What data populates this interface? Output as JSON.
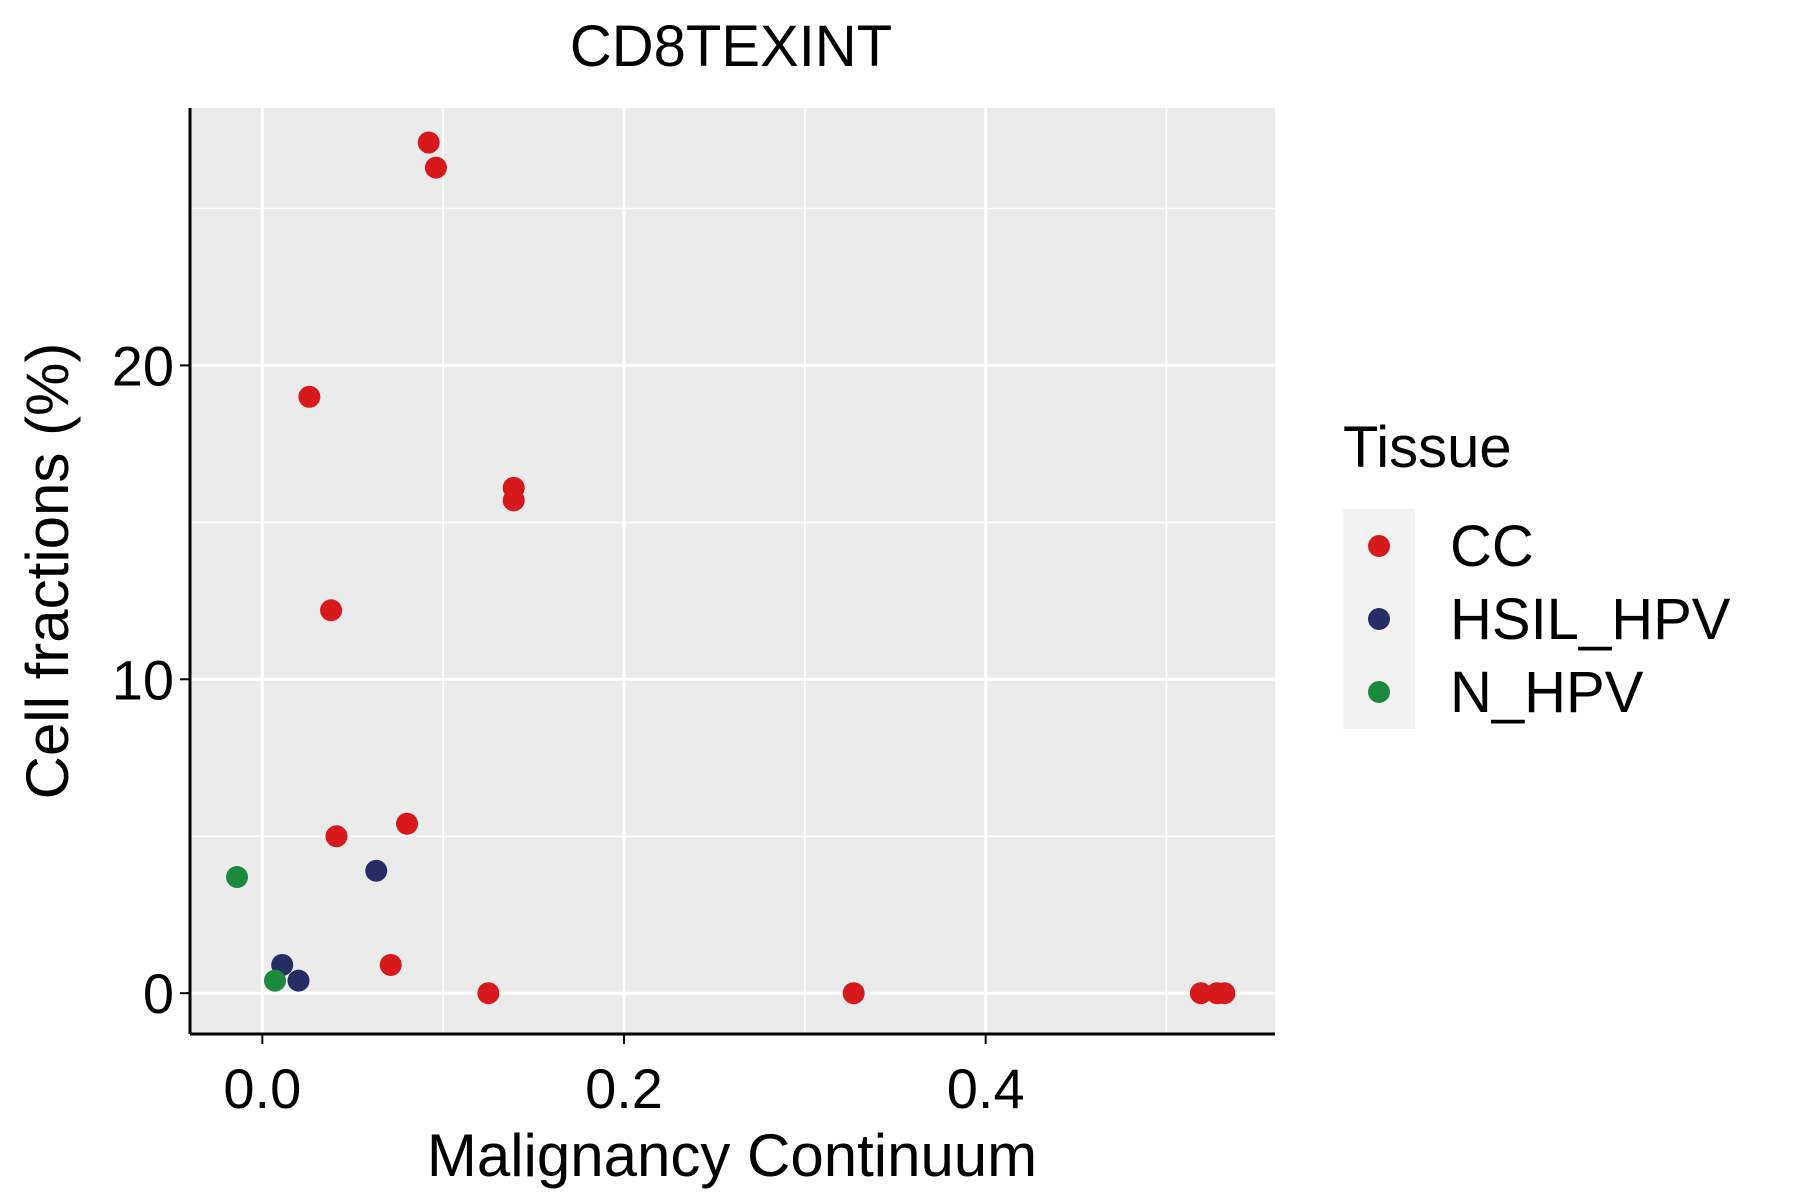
{
  "chart_data": {
    "type": "scatter",
    "title": "CD8TEXINT",
    "xlabel": "Malignancy Continuum",
    "ylabel": "Cell fractions (%)",
    "xlim": [
      -0.04,
      0.56
    ],
    "ylim": [
      -1.3,
      28.2
    ],
    "x_ticks": [
      0.0,
      0.2,
      0.4
    ],
    "x_tick_labels": [
      "0.0",
      "0.2",
      "0.4"
    ],
    "x_minor_ticks": [
      0.1,
      0.3,
      0.5
    ],
    "y_ticks": [
      0,
      10,
      20
    ],
    "y_tick_labels": [
      "0",
      "10",
      "20"
    ],
    "y_minor_ticks": [
      5,
      15,
      25
    ],
    "grid": true,
    "panel_background": "#EBEBEB",
    "legend": {
      "title": "Tissue",
      "placement": "right",
      "entries": [
        {
          "label": "CC",
          "color": "#D7191C"
        },
        {
          "label": "HSIL_HPV",
          "color": "#252D64"
        },
        {
          "label": "N_HPV",
          "color": "#1B8A3F"
        }
      ]
    },
    "series": [
      {
        "name": "CC",
        "color": "#D7191C",
        "points": [
          {
            "x": 0.092,
            "y": 27.1
          },
          {
            "x": 0.096,
            "y": 26.3
          },
          {
            "x": 0.026,
            "y": 19.0
          },
          {
            "x": 0.139,
            "y": 16.1
          },
          {
            "x": 0.139,
            "y": 15.7
          },
          {
            "x": 0.038,
            "y": 12.2
          },
          {
            "x": 0.041,
            "y": 5.0
          },
          {
            "x": 0.08,
            "y": 5.4
          },
          {
            "x": 0.071,
            "y": 0.9
          },
          {
            "x": 0.125,
            "y": 0.0
          },
          {
            "x": 0.327,
            "y": 0.0
          },
          {
            "x": 0.519,
            "y": 0.0
          },
          {
            "x": 0.528,
            "y": 0.0
          },
          {
            "x": 0.532,
            "y": 0.0
          }
        ]
      },
      {
        "name": "HSIL_HPV",
        "color": "#252D64",
        "points": [
          {
            "x": 0.063,
            "y": 3.9
          },
          {
            "x": 0.011,
            "y": 0.9
          },
          {
            "x": 0.02,
            "y": 0.4
          }
        ]
      },
      {
        "name": "N_HPV",
        "color": "#1B8A3F",
        "points": [
          {
            "x": -0.014,
            "y": 3.7
          },
          {
            "x": 0.007,
            "y": 0.4
          }
        ]
      }
    ]
  }
}
